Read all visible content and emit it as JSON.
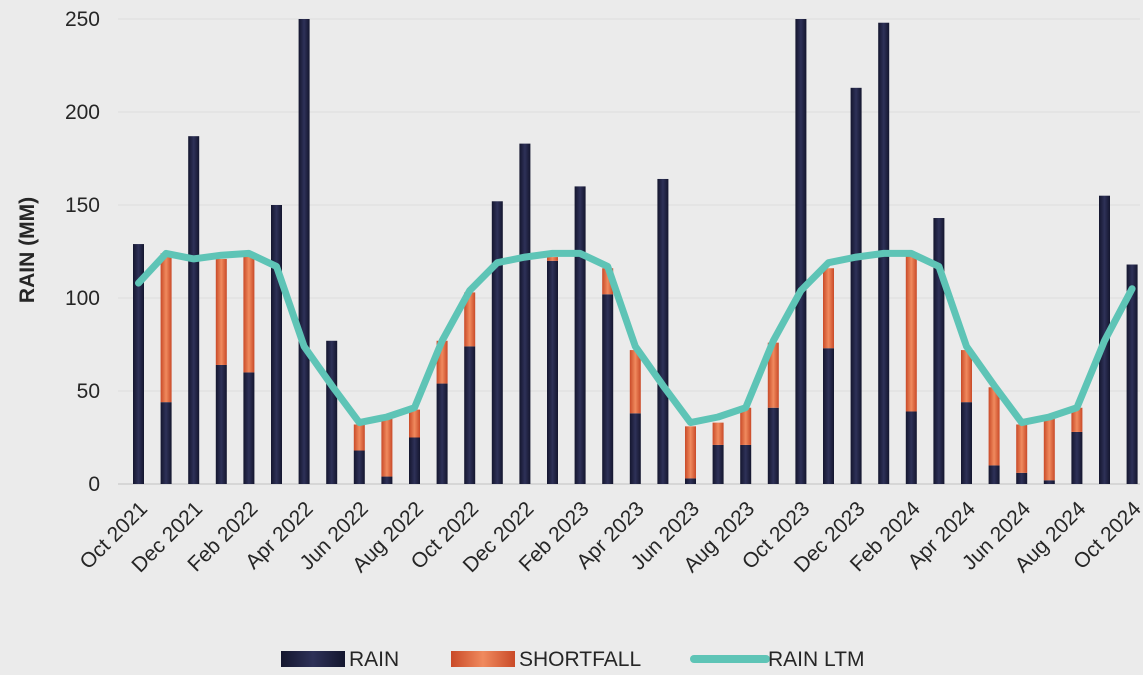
{
  "chart_data": {
    "type": "bar",
    "ylabel": "RAIN (MM)",
    "xlabel": "",
    "ylim": [
      0,
      250
    ],
    "yticks": [
      0,
      50,
      100,
      150,
      200,
      250
    ],
    "grid": true,
    "legend_position": "bottom",
    "categories": [
      "Oct 2021",
      "Nov 2021",
      "Dec 2021",
      "Jan 2022",
      "Feb 2022",
      "Mar 2022",
      "Apr 2022",
      "May 2022",
      "Jun 2022",
      "Jul 2022",
      "Aug 2022",
      "Sep 2022",
      "Oct 2022",
      "Nov 2022",
      "Dec 2022",
      "Jan 2023",
      "Feb 2023",
      "Mar 2023",
      "Apr 2023",
      "May 2023",
      "Jun 2023",
      "Jul 2023",
      "Aug 2023",
      "Sep 2023",
      "Oct 2023",
      "Nov 2023",
      "Dec 2023",
      "Jan 2024",
      "Feb 2024",
      "Mar 2024",
      "Apr 2024",
      "May 2024",
      "Jun 2024",
      "Jul 2024",
      "Aug 2024",
      "Sep 2024",
      "Oct 2024"
    ],
    "x_tick_labels": [
      "Oct 2021",
      "Dec 2021",
      "Feb 2022",
      "Apr 2022",
      "Jun 2022",
      "Aug 2022",
      "Oct 2022",
      "Dec 2022",
      "Feb 2023",
      "Apr 2023",
      "Jun 2023",
      "Aug 2023",
      "Oct 2023",
      "Dec 2023",
      "Feb 2024",
      "Apr 2024",
      "Jun 2024",
      "Aug 2024",
      "Oct 2024"
    ],
    "series": [
      {
        "name": "RAIN",
        "type": "bar",
        "color": "#1f2140",
        "values": [
          129,
          44,
          187,
          64,
          60,
          150,
          250,
          77,
          18,
          4,
          25,
          54,
          74,
          152,
          183,
          120,
          160,
          102,
          38,
          164,
          3,
          21,
          21,
          41,
          250,
          73,
          213,
          248,
          39,
          143,
          44,
          10,
          6,
          2,
          28,
          155,
          118
        ]
      },
      {
        "name": "SHORTFALL",
        "type": "stacked-bar",
        "color": "#e0603a",
        "values": [
          0,
          80,
          0,
          57,
          64,
          0,
          0,
          0,
          14,
          31,
          15,
          23,
          29,
          0,
          0,
          2,
          0,
          14,
          34,
          0,
          28,
          12,
          20,
          35,
          0,
          43,
          0,
          0,
          84,
          0,
          28,
          42,
          26,
          35,
          13,
          0,
          0
        ]
      },
      {
        "name": "RAIN LTM",
        "type": "line",
        "color": "#5ec4b6",
        "values": [
          108,
          124,
          121,
          123,
          124,
          117,
          74,
          53,
          33,
          36,
          41,
          77,
          104,
          119,
          122,
          124,
          124,
          117,
          74,
          53,
          33,
          36,
          41,
          77,
          104,
          119,
          122,
          124,
          124,
          117,
          74,
          53,
          33,
          36,
          41,
          77,
          105
        ]
      }
    ]
  }
}
